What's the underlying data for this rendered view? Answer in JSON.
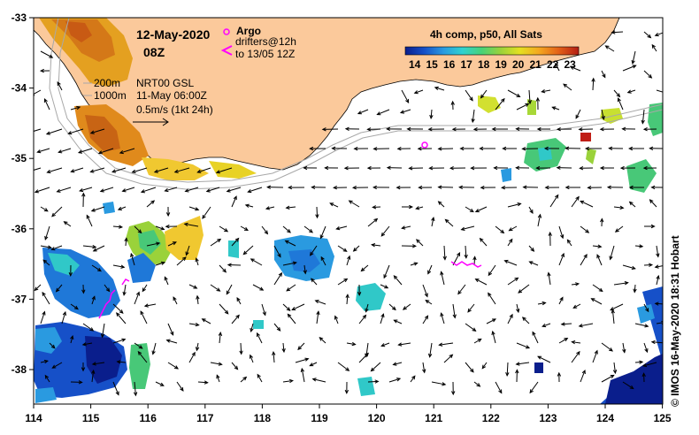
{
  "title": {
    "date": "12-May-2020",
    "time": "08Z"
  },
  "argo": {
    "title": "Argo",
    "drifters": "drifters@12h",
    "until": "to 13/05 12Z"
  },
  "isobaths": {
    "a": "200m",
    "b": "1000m"
  },
  "nrt": {
    "line1": "NRT00 GSL",
    "line2": "11-May 06:00Z",
    "scale": "0.5m/s (1kt 24h)"
  },
  "colorbar": {
    "title": "4h comp, p50, All Sats",
    "ticks": [
      "14",
      "15",
      "16",
      "17",
      "18",
      "19",
      "20",
      "21",
      "22",
      "23"
    ],
    "stops": [
      "#0a1e8c",
      "#1650c8",
      "#2a9ae0",
      "#30d2d0",
      "#48d278",
      "#9ad23a",
      "#e4e020",
      "#f4a820",
      "#e46418",
      "#b41e14"
    ]
  },
  "axes": {
    "lon_ticks": [
      "114",
      "115",
      "116",
      "117",
      "118",
      "119",
      "120",
      "121",
      "122",
      "123",
      "124",
      "125"
    ],
    "lat_ticks": [
      "-33",
      "-34",
      "-35",
      "-36",
      "-37",
      "-38"
    ]
  },
  "colors": {
    "land": "#fbc99b",
    "drifter": "#ff00ff",
    "arrow": "#000000"
  },
  "credit": "© IMOS 16-May-2020 18:31 Hobart"
}
